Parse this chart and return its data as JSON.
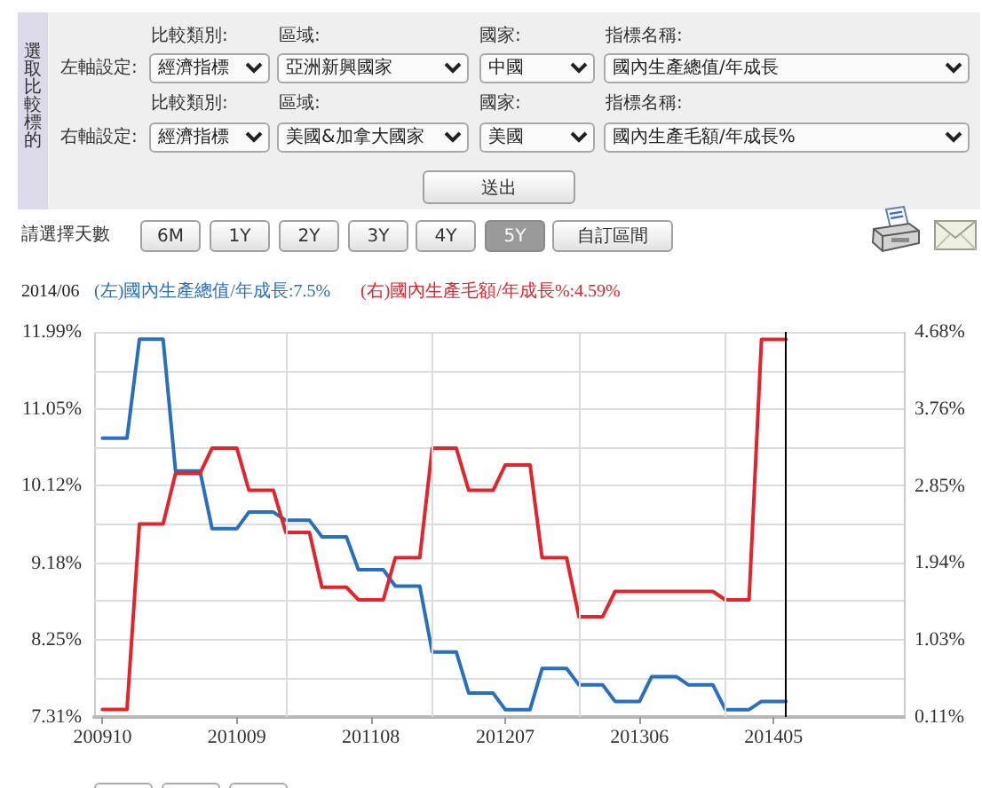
{
  "chart_data": {
    "type": "line",
    "annotations": [
      "選取比較標的",
      "左軸設定:",
      "比較類別:",
      "經濟指標",
      "區域:",
      "亞洲新興國家",
      "國家:",
      "中國",
      "指標名稱:",
      "國內生產總值/年成長",
      "右軸設定:",
      "比較類別:",
      "經濟指標",
      "區域:",
      "美國&加拿大國家",
      "國家:",
      "美國",
      "指標名稱:",
      "國內生產毛額/年成長%",
      "送出",
      "請選擇天數",
      "6M",
      "1Y",
      "2Y",
      "3Y",
      "4Y",
      "5Y",
      "自訂區間",
      "2014/06",
      "(左)國內生產總值/年成長:7.5%",
      "(右)國內生產毛額/年成長%:4.59%"
    ],
    "x": [
      "2009-10",
      "2009-11",
      "2009-12",
      "2010-01",
      "2010-02",
      "2010-03",
      "2010-04",
      "2010-05",
      "2010-06",
      "2010-07",
      "2010-08",
      "2010-09",
      "2010-10",
      "2010-11",
      "2010-12",
      "2011-01",
      "2011-02",
      "2011-03",
      "2011-04",
      "2011-05",
      "2011-06",
      "2011-07",
      "2011-08",
      "2011-09",
      "2011-10",
      "2011-11",
      "2011-12",
      "2012-01",
      "2012-02",
      "2012-03",
      "2012-04",
      "2012-05",
      "2012-06",
      "2012-07",
      "2012-08",
      "2012-09",
      "2012-10",
      "2012-11",
      "2012-12",
      "2013-01",
      "2013-02",
      "2013-03",
      "2013-04",
      "2013-05",
      "2013-06",
      "2013-07",
      "2013-08",
      "2013-09",
      "2013-10",
      "2013-11",
      "2013-12",
      "2014-01",
      "2014-02",
      "2014-03",
      "2014-04",
      "2014-05",
      "2014-06"
    ],
    "series": [
      {
        "color": "#2a6fbd",
        "values": [
          10.7,
          10.7,
          10.7,
          11.9,
          11.9,
          11.9,
          10.3,
          10.3,
          10.3,
          9.6,
          9.6,
          9.6,
          9.8,
          9.8,
          9.8,
          9.7,
          9.7,
          9.7,
          9.5,
          9.5,
          9.5,
          9.1,
          9.1,
          9.1,
          8.9,
          8.9,
          8.9,
          8.1,
          8.1,
          8.1,
          7.6,
          7.6,
          7.6,
          7.4,
          7.4,
          7.4,
          7.9,
          7.9,
          7.9,
          7.7,
          7.7,
          7.7,
          7.5,
          7.5,
          7.5,
          7.8,
          7.8,
          7.8,
          7.7,
          7.7,
          7.7,
          7.4,
          7.4,
          7.4,
          7.5,
          7.5,
          7.5
        ]
      },
      {
        "color": "#e2242c",
        "axis": "y2",
        "values": [
          0.2,
          0.2,
          0.2,
          2.4,
          2.4,
          2.4,
          3.0,
          3.0,
          3.0,
          3.3,
          3.3,
          3.3,
          2.8,
          2.8,
          2.8,
          2.3,
          2.3,
          2.3,
          1.65,
          1.65,
          1.65,
          1.5,
          1.5,
          1.5,
          2.0,
          2.0,
          2.0,
          3.3,
          3.3,
          3.3,
          2.8,
          2.8,
          2.8,
          3.1,
          3.1,
          3.1,
          2.0,
          2.0,
          2.0,
          1.3,
          1.3,
          1.3,
          1.6,
          1.6,
          1.6,
          1.6,
          1.6,
          1.6,
          1.6,
          1.6,
          1.6,
          1.5,
          1.5,
          1.5,
          4.59,
          4.59,
          4.59
        ]
      }
    ],
    "xlim": [
      "2009-09-10",
      "2015-03-22"
    ],
    "xticks": [
      {
        "value": "2009-10",
        "label": "200910"
      },
      {
        "value": "2010-09",
        "label": "201009"
      },
      {
        "value": "2011-08",
        "label": "201108"
      },
      {
        "value": "2012-07",
        "label": "201207"
      },
      {
        "value": "2013-06",
        "label": "201306"
      },
      {
        "value": "2014-05",
        "label": "201405"
      }
    ],
    "ylim": [
      7.31,
      11.99
    ],
    "yticks": [
      {
        "value": 7.31,
        "label": "7.31%"
      },
      {
        "value": 7.78,
        "label": null
      },
      {
        "value": 8.25,
        "label": "8.25%"
      },
      {
        "value": 8.72,
        "label": null
      },
      {
        "value": 9.18,
        "label": "9.18%"
      },
      {
        "value": 9.65,
        "label": null
      },
      {
        "value": 10.12,
        "label": "10.12%"
      },
      {
        "value": 10.59,
        "label": null
      },
      {
        "value": 11.05,
        "label": "11.05%"
      },
      {
        "value": 11.52,
        "label": null
      },
      {
        "value": 11.99,
        "label": "11.99%"
      }
    ],
    "y2lim": [
      0.11,
      4.68
    ],
    "y2ticks": [
      {
        "value": 0.11,
        "label": "0.11%"
      },
      {
        "value": 1.03,
        "label": "1.03%"
      },
      {
        "value": 1.94,
        "label": "1.94%"
      },
      {
        "value": 2.85,
        "label": "2.85%"
      },
      {
        "value": 3.76,
        "label": "3.76%"
      },
      {
        "value": 4.68,
        "label": "4.68%"
      }
    ],
    "ref_lines": [
      {
        "axis": "x",
        "value": "2011-01",
        "color": "#dcdcdc"
      },
      {
        "axis": "x",
        "value": "2012-01",
        "color": "#dcdcdc"
      },
      {
        "axis": "x",
        "value": "2013-01",
        "color": "#dcdcdc"
      },
      {
        "axis": "x",
        "value": "2014-01",
        "color": "#dcdcdc"
      },
      {
        "axis": "x",
        "value": "2014-06",
        "color": "#000000"
      }
    ],
    "grid": "y"
  }
}
